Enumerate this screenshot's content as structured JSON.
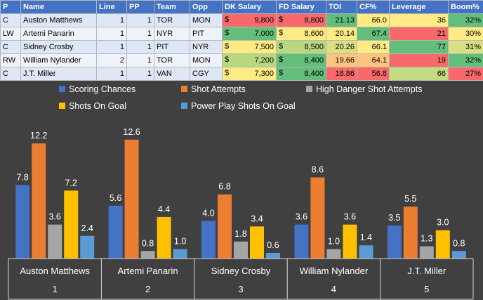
{
  "table": {
    "headers": [
      "P",
      "Name",
      "Line",
      "PP",
      "Team",
      "Opp",
      "DK Salary",
      "FD Salary",
      "TOI",
      "CF%",
      "Leverage",
      "Boom%"
    ],
    "currency_symbol": "$",
    "rows": [
      {
        "pos": "C",
        "name": "Auston Matthews",
        "line": "1",
        "pp": "1",
        "team": "TOR",
        "opp": "MON",
        "dk": "9,800",
        "fd": "8,800",
        "toi": "21.13",
        "cf": "66.0",
        "lev": "36",
        "boom": "32%",
        "colors": {
          "dk": "#f8696b",
          "fd": "#f8696b",
          "toi": "#63be7b",
          "cf": "#ffeb84",
          "lev": "#ffeb84",
          "boom": "#63be7b"
        }
      },
      {
        "pos": "LW",
        "name": "Artemi Panarin",
        "line": "1",
        "pp": "1",
        "team": "NYR",
        "opp": "PIT",
        "dk": "7,000",
        "fd": "8,600",
        "toi": "20.14",
        "cf": "67.4",
        "lev": "21",
        "boom": "30%",
        "colors": {
          "dk": "#63be7b",
          "fd": "#ffeb84",
          "toi": "#ffeb84",
          "cf": "#63be7b",
          "lev": "#f8696b",
          "boom": "#ffeb84"
        }
      },
      {
        "pos": "C",
        "name": "Sidney Crosby",
        "line": "1",
        "pp": "1",
        "team": "PIT",
        "opp": "NYR",
        "dk": "7,500",
        "fd": "8,500",
        "toi": "20.26",
        "cf": "66.1",
        "lev": "77",
        "boom": "31%",
        "colors": {
          "dk": "#ffeb84",
          "fd": "#b8d880",
          "toi": "#d8e082",
          "cf": "#ffeb84",
          "lev": "#63be7b",
          "boom": "#d8e082"
        }
      },
      {
        "pos": "RW",
        "name": "William Nylander",
        "line": "2",
        "pp": "1",
        "team": "TOR",
        "opp": "MON",
        "dk": "7,200",
        "fd": "8,400",
        "toi": "19.66",
        "cf": "64.1",
        "lev": "19",
        "boom": "32%",
        "colors": {
          "dk": "#b8d880",
          "fd": "#63be7b",
          "toi": "#fdc47d",
          "cf": "#fdc47d",
          "lev": "#f8696b",
          "boom": "#63be7b"
        }
      },
      {
        "pos": "C",
        "name": "J.T. Miller",
        "line": "1",
        "pp": "1",
        "team": "VAN",
        "opp": "CGY",
        "dk": "7,300",
        "fd": "8,400",
        "toi": "18.86",
        "cf": "56.8",
        "lev": "66",
        "boom": "27%",
        "colors": {
          "dk": "#ffeb84",
          "fd": "#63be7b",
          "toi": "#f8696b",
          "cf": "#f8696b",
          "lev": "#c4dc81",
          "boom": "#f8696b"
        }
      }
    ]
  },
  "chart_data": {
    "type": "bar",
    "title": "",
    "xlabel": "",
    "ylabel": "",
    "ylim": [
      0,
      14
    ],
    "grid": false,
    "legend_position": "top",
    "categories": [
      {
        "name": "Auston Matthews",
        "rank": "1"
      },
      {
        "name": "Artemi Panarin",
        "rank": "2"
      },
      {
        "name": "Sidney Crosby",
        "rank": "3"
      },
      {
        "name": "William Nylander",
        "rank": "4"
      },
      {
        "name": "J.T. Miller",
        "rank": "5"
      }
    ],
    "series": [
      {
        "name": "Scoring Chances",
        "color": "#4472c4",
        "values": [
          7.8,
          5.6,
          4.0,
          3.6,
          3.5
        ]
      },
      {
        "name": "Shot Attempts",
        "color": "#ed7d31",
        "values": [
          12.2,
          12.6,
          6.8,
          8.6,
          5.5
        ]
      },
      {
        "name": "High Danger Shot Attempts",
        "color": "#a5a5a5",
        "values": [
          3.6,
          0.8,
          1.8,
          1.0,
          1.3
        ]
      },
      {
        "name": "Shots On Goal",
        "color": "#ffc000",
        "values": [
          7.2,
          4.4,
          3.4,
          3.6,
          3.0
        ]
      },
      {
        "name": "Power Play Shots On Goal",
        "color": "#5b9bd5",
        "values": [
          2.4,
          1.0,
          0.6,
          1.4,
          0.8
        ]
      }
    ],
    "label_color": "#ffffff",
    "axis_color": "#d9d9d9"
  }
}
